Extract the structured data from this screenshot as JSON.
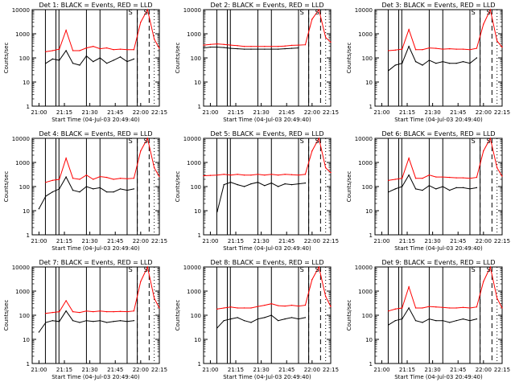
{
  "chart_data": [
    {
      "type": "line",
      "title": "Det 1: BLACK = Events, RED = LLD",
      "xlabel": "Start Time (04-Jul-03 20:49:40)",
      "ylabel": "Counts/sec",
      "yscale": "log",
      "ylim": [
        1,
        10000
      ],
      "xticks": [
        "21:00",
        "21:15",
        "21:30",
        "21:45",
        "22:00",
        "22:15"
      ],
      "yticks": [
        "1",
        "10",
        "100",
        "1000",
        "10000"
      ],
      "annotations": [
        "S",
        "S"
      ],
      "series": [
        {
          "name": "Events",
          "color": "#000000",
          "x": [
            0,
            4,
            8,
            12,
            16,
            20,
            24,
            28,
            32,
            36,
            40,
            44,
            48,
            52,
            56,
            60,
            64,
            68,
            72,
            75
          ],
          "y": [
            null,
            null,
            60,
            90,
            80,
            200,
            60,
            50,
            120,
            70,
            100,
            60,
            80,
            110,
            70,
            90,
            null,
            null,
            null,
            null
          ]
        },
        {
          "name": "LLD",
          "color": "#ff0000",
          "x": [
            0,
            4,
            8,
            12,
            16,
            20,
            24,
            28,
            32,
            36,
            40,
            44,
            48,
            52,
            56,
            60,
            64,
            68,
            72,
            75
          ],
          "y": [
            null,
            null,
            180,
            200,
            230,
            1400,
            200,
            200,
            260,
            300,
            240,
            260,
            220,
            230,
            220,
            220,
            3000,
            10000,
            600,
            250
          ]
        }
      ]
    },
    {
      "type": "line",
      "title": "Det 2: BLACK = Events, RED = LLD",
      "xlabel": "Start Time (04-Jul-03 20:49:40)",
      "ylabel": "Counts/sec",
      "yscale": "log",
      "ylim": [
        1,
        10000
      ],
      "xticks": [
        "21:00",
        "21:15",
        "21:30",
        "21:45",
        "22:00",
        "22:15"
      ],
      "yticks": [
        "1",
        "10",
        "100",
        "1000",
        "10000"
      ],
      "annotations": [
        "S",
        "S"
      ],
      "series": [
        {
          "name": "Events",
          "color": "#000000",
          "x": [
            0,
            4,
            8,
            12,
            16,
            20,
            24,
            28,
            32,
            36,
            40,
            44,
            48,
            52,
            56,
            60,
            64,
            68,
            72,
            75
          ],
          "y": [
            260,
            280,
            280,
            270,
            250,
            240,
            230,
            230,
            230,
            230,
            230,
            230,
            240,
            250,
            260,
            null,
            null,
            null,
            null,
            null
          ]
        },
        {
          "name": "LLD",
          "color": "#ff0000",
          "x": [
            0,
            4,
            8,
            12,
            16,
            20,
            24,
            28,
            32,
            36,
            40,
            44,
            48,
            52,
            56,
            60,
            64,
            68,
            72,
            75
          ],
          "y": [
            340,
            360,
            380,
            360,
            340,
            320,
            300,
            300,
            300,
            300,
            300,
            300,
            310,
            330,
            340,
            350,
            4000,
            10000,
            700,
            450
          ]
        }
      ]
    },
    {
      "type": "line",
      "title": "Det 3: BLACK = Events, RED = LLD",
      "xlabel": "Start Time (04-Jul-03 20:49:40)",
      "ylabel": "Counts/sec",
      "yscale": "log",
      "ylim": [
        1,
        10000
      ],
      "xticks": [
        "21:00",
        "21:15",
        "21:30",
        "21:45",
        "22:00",
        "22:15"
      ],
      "yticks": [
        "1",
        "10",
        "100",
        "1000",
        "10000"
      ],
      "annotations": [
        "S",
        "S"
      ],
      "series": [
        {
          "name": "Events",
          "color": "#000000",
          "x": [
            0,
            4,
            8,
            12,
            16,
            20,
            24,
            28,
            32,
            36,
            40,
            44,
            48,
            52,
            56,
            60,
            64,
            68,
            72,
            75
          ],
          "y": [
            null,
            null,
            30,
            50,
            60,
            300,
            70,
            50,
            80,
            60,
            70,
            60,
            60,
            70,
            60,
            100,
            null,
            null,
            null,
            null
          ]
        },
        {
          "name": "LLD",
          "color": "#ff0000",
          "x": [
            0,
            4,
            8,
            12,
            16,
            20,
            24,
            28,
            32,
            36,
            40,
            44,
            48,
            52,
            56,
            60,
            64,
            68,
            72,
            75
          ],
          "y": [
            null,
            null,
            200,
            210,
            230,
            1500,
            220,
            220,
            260,
            250,
            230,
            240,
            230,
            230,
            220,
            250,
            2500,
            10000,
            500,
            280
          ]
        }
      ]
    },
    {
      "type": "line",
      "title": "Det 4: BLACK = Events, RED = LLD",
      "xlabel": "Start Time (04-Jul-03 20:49:40)",
      "ylabel": "Counts/sec",
      "yscale": "log",
      "ylim": [
        1,
        10000
      ],
      "xticks": [
        "21:00",
        "21:15",
        "21:30",
        "21:45",
        "22:00",
        "22:15"
      ],
      "yticks": [
        "1",
        "10",
        "100",
        "1000",
        "10000"
      ],
      "annotations": [
        "S",
        "S"
      ],
      "series": [
        {
          "name": "Events",
          "color": "#000000",
          "x": [
            0,
            4,
            8,
            12,
            16,
            20,
            24,
            28,
            32,
            36,
            40,
            44,
            48,
            52,
            56,
            60,
            64,
            68,
            72,
            75
          ],
          "y": [
            null,
            12,
            40,
            60,
            80,
            250,
            70,
            60,
            100,
            80,
            90,
            60,
            60,
            80,
            70,
            80,
            null,
            null,
            null,
            null
          ]
        },
        {
          "name": "LLD",
          "color": "#ff0000",
          "x": [
            0,
            4,
            8,
            12,
            16,
            20,
            24,
            28,
            32,
            36,
            40,
            44,
            48,
            52,
            56,
            60,
            64,
            68,
            72,
            75
          ],
          "y": [
            null,
            null,
            150,
            180,
            200,
            1500,
            220,
            200,
            300,
            200,
            260,
            240,
            200,
            220,
            210,
            220,
            3000,
            10000,
            600,
            260
          ]
        }
      ]
    },
    {
      "type": "line",
      "title": "Det 5: BLACK = Events, RED = LLD",
      "xlabel": "Start Time (04-Jul-03 20:49:40)",
      "ylabel": "Counts/sec",
      "yscale": "log",
      "ylim": [
        1,
        10000
      ],
      "xticks": [
        "21:00",
        "21:15",
        "21:30",
        "21:45",
        "22:00",
        "22:15"
      ],
      "yticks": [
        "1",
        "10",
        "100",
        "1000",
        "10000"
      ],
      "annotations": [
        "S",
        "S"
      ],
      "series": [
        {
          "name": "Events",
          "color": "#000000",
          "x": [
            0,
            4,
            8,
            12,
            16,
            20,
            24,
            28,
            32,
            36,
            40,
            44,
            48,
            52,
            56,
            60,
            64,
            68,
            72,
            75
          ],
          "y": [
            null,
            null,
            9,
            120,
            150,
            120,
            100,
            130,
            150,
            110,
            140,
            100,
            130,
            120,
            130,
            140,
            null,
            null,
            null,
            null
          ]
        },
        {
          "name": "LLD",
          "color": "#ff0000",
          "x": [
            0,
            4,
            8,
            12,
            16,
            20,
            24,
            28,
            32,
            36,
            40,
            44,
            48,
            52,
            56,
            60,
            64,
            68,
            72,
            75
          ],
          "y": [
            280,
            290,
            300,
            320,
            300,
            320,
            300,
            300,
            320,
            300,
            320,
            300,
            320,
            310,
            300,
            320,
            3000,
            10000,
            600,
            380
          ]
        }
      ]
    },
    {
      "type": "line",
      "title": "Det 6: BLACK = Events, RED = LLD",
      "xlabel": "Start Time (04-Jul-03 20:49:40)",
      "ylabel": "Counts/sec",
      "yscale": "log",
      "ylim": [
        1,
        10000
      ],
      "xticks": [
        "21:00",
        "21:15",
        "21:30",
        "21:45",
        "22:00",
        "22:15"
      ],
      "yticks": [
        "1",
        "10",
        "100",
        "1000",
        "10000"
      ],
      "annotations": [
        "S",
        "S"
      ],
      "series": [
        {
          "name": "Events",
          "color": "#000000",
          "x": [
            0,
            4,
            8,
            12,
            16,
            20,
            24,
            28,
            32,
            36,
            40,
            44,
            48,
            52,
            56,
            60,
            64,
            68,
            72,
            75
          ],
          "y": [
            null,
            null,
            60,
            80,
            100,
            300,
            80,
            70,
            110,
            80,
            100,
            70,
            90,
            90,
            80,
            90,
            null,
            null,
            null,
            null
          ]
        },
        {
          "name": "LLD",
          "color": "#ff0000",
          "x": [
            0,
            4,
            8,
            12,
            16,
            20,
            24,
            28,
            32,
            36,
            40,
            44,
            48,
            52,
            56,
            60,
            64,
            68,
            72,
            75
          ],
          "y": [
            null,
            null,
            180,
            200,
            220,
            1500,
            220,
            220,
            300,
            250,
            250,
            240,
            230,
            230,
            220,
            240,
            3000,
            10000,
            600,
            270
          ]
        }
      ]
    },
    {
      "type": "line",
      "title": "Det 7: BLACK = Events, RED = LLD",
      "xlabel": "Start Time (04-Jul-03 20:49:40)",
      "ylabel": "Counts/sec",
      "yscale": "log",
      "ylim": [
        1,
        10000
      ],
      "xticks": [
        "21:00",
        "21:15",
        "21:30",
        "21:45",
        "22:00",
        "22:15"
      ],
      "yticks": [
        "1",
        "10",
        "100",
        "1000",
        "10000"
      ],
      "annotations": [
        "S",
        "S"
      ],
      "series": [
        {
          "name": "Events",
          "color": "#000000",
          "x": [
            0,
            4,
            8,
            12,
            16,
            20,
            24,
            28,
            32,
            36,
            40,
            44,
            48,
            52,
            56,
            60,
            64,
            68,
            72,
            75
          ],
          "y": [
            null,
            20,
            50,
            60,
            55,
            150,
            60,
            50,
            60,
            55,
            60,
            50,
            55,
            60,
            55,
            60,
            null,
            null,
            null,
            null
          ]
        },
        {
          "name": "LLD",
          "color": "#ff0000",
          "x": [
            0,
            4,
            8,
            12,
            16,
            20,
            24,
            28,
            32,
            36,
            40,
            44,
            48,
            52,
            56,
            60,
            64,
            68,
            72,
            75
          ],
          "y": [
            null,
            null,
            120,
            130,
            140,
            400,
            140,
            130,
            150,
            140,
            150,
            140,
            140,
            145,
            140,
            150,
            2500,
            10000,
            500,
            200
          ]
        }
      ]
    },
    {
      "type": "line",
      "title": "Det 8: BLACK = Events, RED = LLD",
      "xlabel": "Start Time (04-Jul-03 20:49:40)",
      "ylabel": "Counts/sec",
      "yscale": "log",
      "ylim": [
        1,
        10000
      ],
      "xticks": [
        "21:00",
        "21:15",
        "21:30",
        "21:45",
        "22:00",
        "22:15"
      ],
      "yticks": [
        "1",
        "10",
        "100",
        "1000",
        "10000"
      ],
      "annotations": [
        "S",
        "S"
      ],
      "series": [
        {
          "name": "Events",
          "color": "#000000",
          "x": [
            0,
            4,
            8,
            12,
            16,
            20,
            24,
            28,
            32,
            36,
            40,
            44,
            48,
            52,
            56,
            60,
            64,
            68,
            72,
            75
          ],
          "y": [
            null,
            null,
            30,
            60,
            70,
            80,
            60,
            50,
            70,
            80,
            100,
            60,
            70,
            80,
            70,
            80,
            null,
            null,
            null,
            null
          ]
        },
        {
          "name": "LLD",
          "color": "#ff0000",
          "x": [
            0,
            4,
            8,
            12,
            16,
            20,
            24,
            28,
            32,
            36,
            40,
            44,
            48,
            52,
            56,
            60,
            64,
            68,
            72,
            75
          ],
          "y": [
            null,
            null,
            180,
            200,
            220,
            200,
            200,
            200,
            230,
            260,
            300,
            250,
            240,
            260,
            240,
            260,
            3000,
            10000,
            600,
            230
          ]
        }
      ]
    },
    {
      "type": "line",
      "title": "Det 9: BLACK = Events, RED = LLD",
      "xlabel": "Start Time (04-Jul-03 20:49:40)",
      "ylabel": "Counts/sec",
      "yscale": "log",
      "ylim": [
        1,
        10000
      ],
      "xticks": [
        "21:00",
        "21:15",
        "21:30",
        "21:45",
        "22:00",
        "22:15"
      ],
      "yticks": [
        "1",
        "10",
        "100",
        "1000",
        "10000"
      ],
      "annotations": [
        "S",
        "S"
      ],
      "series": [
        {
          "name": "Events",
          "color": "#000000",
          "x": [
            0,
            4,
            8,
            12,
            16,
            20,
            24,
            28,
            32,
            36,
            40,
            44,
            48,
            52,
            56,
            60,
            64,
            68,
            72,
            75
          ],
          "y": [
            null,
            null,
            40,
            60,
            70,
            200,
            60,
            50,
            70,
            60,
            60,
            50,
            60,
            70,
            60,
            70,
            null,
            null,
            null,
            null
          ]
        },
        {
          "name": "LLD",
          "color": "#ff0000",
          "x": [
            0,
            4,
            8,
            12,
            16,
            20,
            24,
            28,
            32,
            36,
            40,
            44,
            48,
            52,
            56,
            60,
            64,
            68,
            72,
            75
          ],
          "y": [
            null,
            null,
            150,
            180,
            200,
            1500,
            200,
            200,
            230,
            220,
            210,
            200,
            200,
            210,
            200,
            220,
            2500,
            10000,
            500,
            200
          ]
        }
      ]
    }
  ],
  "colors": {
    "events": "#000000",
    "lld": "#ff0000",
    "axes": "#000000",
    "background": "#ffffff"
  }
}
